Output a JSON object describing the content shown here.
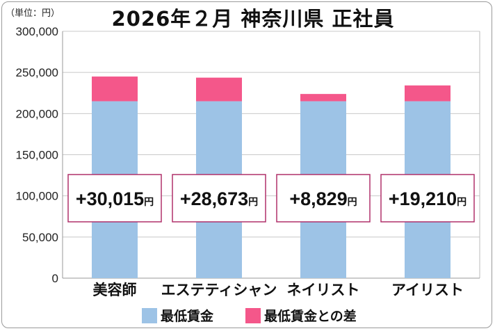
{
  "unit_label": "（単位：円）",
  "title": "2026年２月 神奈川県 正社員",
  "legend": [
    {
      "label": "最低賃金",
      "color": "#9dc3e6"
    },
    {
      "label": "最低賃金との差",
      "color": "#f4578a"
    }
  ],
  "colors": {
    "base": "#9dc3e6",
    "diff": "#f4578a",
    "callout_border": "#b0306a",
    "grid": "#c8c8c8"
  },
  "chart_data": {
    "type": "bar",
    "stacked": true,
    "title": "2026年２月 神奈川県 正社員",
    "categories": [
      "美容師",
      "エステティシャン",
      "ネイリスト",
      "アイリスト"
    ],
    "series": [
      {
        "name": "最低賃金",
        "values": [
          215000,
          215000,
          215000,
          215000
        ]
      },
      {
        "name": "最低賃金との差",
        "values": [
          30015,
          28673,
          8829,
          19210
        ]
      }
    ],
    "callouts": [
      {
        "value": "+30,015",
        "unit": "円"
      },
      {
        "value": "+28,673",
        "unit": "円"
      },
      {
        "value": "+8,829",
        "unit": "円"
      },
      {
        "value": "+19,210",
        "unit": "円"
      }
    ],
    "ylim": [
      0,
      300000
    ],
    "y_ticks": [
      "0",
      "50,000",
      "100,000",
      "150,000",
      "200,000",
      "250,000",
      "300,000"
    ],
    "grid": true,
    "legend_position": "bottom"
  }
}
